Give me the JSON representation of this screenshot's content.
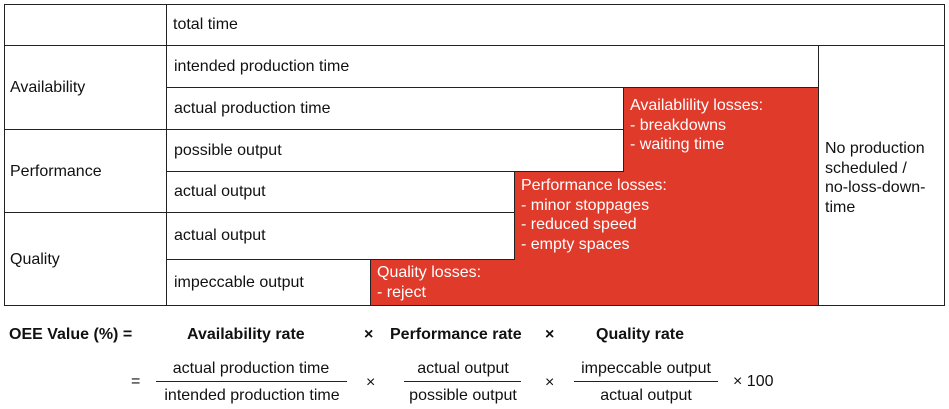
{
  "diagram": {
    "top_row": "total time",
    "categories": {
      "availability": "Availability",
      "performance": "Performance",
      "quality": "Quality"
    },
    "rows": {
      "intended_production_time": "intended production time",
      "actual_production_time": "actual production time",
      "possible_output": "possible output",
      "actual_output_1": "actual output",
      "actual_output_2": "actual output",
      "impeccable_output": "impeccable output"
    },
    "losses": {
      "availability": {
        "title": "Availablility losses:",
        "items": [
          "- breakdowns",
          "- waiting time"
        ]
      },
      "performance": {
        "title": "Performance losses:",
        "items": [
          "- minor stoppages",
          "- reduced speed",
          "- empty spaces"
        ]
      },
      "quality": {
        "title": "Quality losses:",
        "items": [
          "- reject"
        ]
      }
    },
    "no_production": [
      "No production",
      "scheduled /",
      "no-loss-down-",
      "time"
    ],
    "colors": {
      "loss_fill": "#e03a2b",
      "border": "#222222"
    }
  },
  "formula": {
    "lhs": "OEE Value (%) =",
    "availability_rate": "Availability rate",
    "performance_rate": "Performance rate",
    "quality_rate": "Quality rate",
    "times": "×",
    "equals": "=",
    "frac1": {
      "num": "actual production time",
      "den": "intended production time"
    },
    "frac2": {
      "num": "actual output",
      "den": "possible output"
    },
    "frac3": {
      "num": "impeccable output",
      "den": "actual output"
    },
    "times_100": "× 100"
  }
}
